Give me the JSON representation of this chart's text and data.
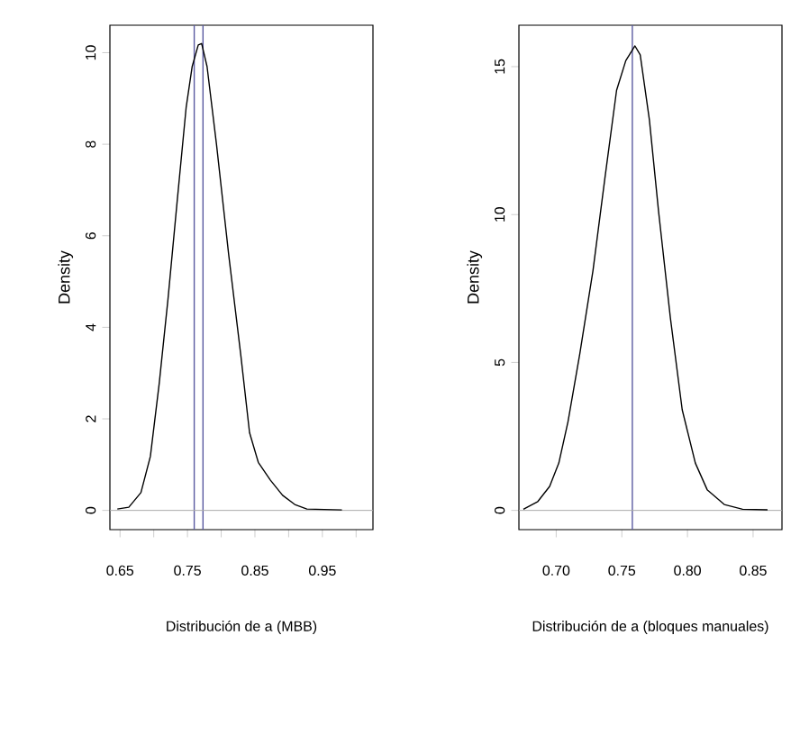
{
  "chart_data": [
    {
      "type": "line",
      "xlabel": "Distribución de a (MBB)",
      "ylabel": "Density",
      "series": [
        {
          "color": "#000000",
          "x": [
            0.646,
            0.663,
            0.681,
            0.695,
            0.708,
            0.721,
            0.735,
            0.748,
            0.757,
            0.766,
            0.771,
            0.779,
            0.793,
            0.811,
            0.829,
            0.842,
            0.855,
            0.873,
            0.891,
            0.909,
            0.927,
            0.979
          ],
          "values": [
            0.03,
            0.07,
            0.39,
            1.18,
            2.76,
            4.6,
            6.8,
            8.8,
            9.7,
            10.17,
            10.2,
            9.7,
            8.0,
            5.6,
            3.4,
            1.7,
            1.05,
            0.66,
            0.33,
            0.13,
            0.03,
            0.01
          ]
        }
      ],
      "xlim": [
        0.635,
        1.025
      ],
      "ylim": [
        -0.42,
        10.6
      ],
      "xticks": [
        0.65,
        {
          "value": 0.7,
          "label": null
        },
        0.75,
        {
          "value": 0.8,
          "label": null
        },
        0.85,
        {
          "value": 0.9,
          "label": null
        },
        0.95,
        {
          "value": 1.0,
          "label": null
        }
      ],
      "yticks": [
        0,
        2,
        4,
        6,
        8,
        10
      ],
      "ref_lines": [
        {
          "axis": "x",
          "value": 0.76,
          "color": "#5a5aa0"
        },
        {
          "axis": "x",
          "value": 0.773,
          "color": "#5a5aa0"
        },
        {
          "axis": "y",
          "value": 0,
          "color": "#aaaaaa"
        }
      ]
    },
    {
      "type": "line",
      "xlabel": "Distribución de a (bloques manuales)",
      "ylabel": "Density",
      "series": [
        {
          "color": "#000000",
          "x": [
            0.675,
            0.686,
            0.695,
            0.702,
            0.709,
            0.718,
            0.728,
            0.737,
            0.746,
            0.753,
            0.76,
            0.764,
            0.771,
            0.778,
            0.787,
            0.796,
            0.806,
            0.815,
            0.828,
            0.842,
            0.861
          ],
          "values": [
            0.04,
            0.3,
            0.81,
            1.6,
            3.0,
            5.3,
            8.1,
            11.2,
            14.2,
            15.2,
            15.7,
            15.4,
            13.2,
            10.1,
            6.5,
            3.4,
            1.6,
            0.7,
            0.2,
            0.04,
            0.02
          ]
        }
      ],
      "xlim": [
        0.6716,
        0.872
      ],
      "ylim": [
        -0.65,
        16.4
      ],
      "xticks": [
        {
          "value": 0.7,
          "label": "0.70"
        },
        0.75,
        {
          "value": 0.8,
          "label": "0.80"
        },
        0.85
      ],
      "yticks": [
        0,
        5,
        10,
        15
      ],
      "ref_lines": [
        {
          "axis": "x",
          "value": 0.758,
          "color": "#5a5aa0"
        },
        {
          "axis": "y",
          "value": 0,
          "color": "#aaaaaa"
        }
      ]
    }
  ]
}
